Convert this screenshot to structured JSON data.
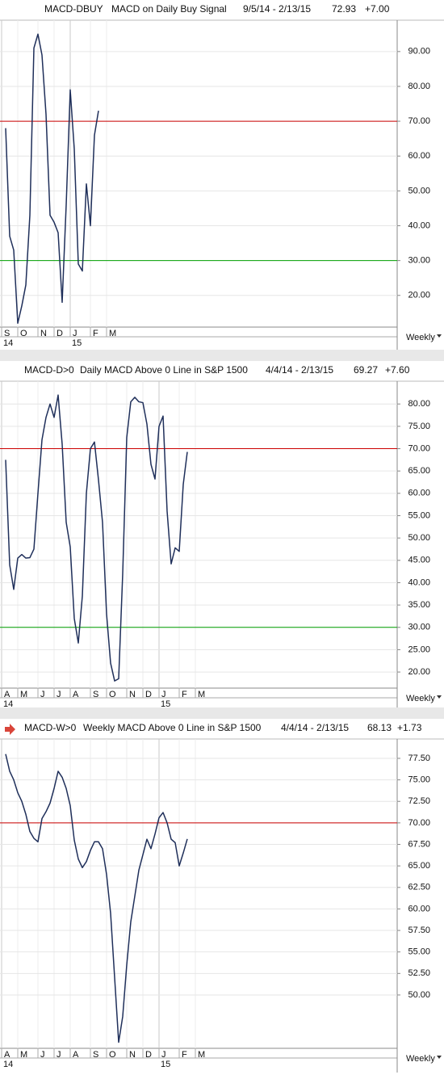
{
  "chart_data": [
    {
      "type": "line",
      "title": "MACD-DBUY",
      "subtitle": "MACD on Daily Buy Signal",
      "date_range": "9/5/14 - 2/13/15",
      "last": 72.93,
      "change": "+7.00",
      "period": "Weekly",
      "categories": [
        "S",
        null,
        null,
        null,
        "O",
        null,
        null,
        null,
        null,
        "N",
        null,
        null,
        null,
        "D",
        null,
        null,
        null,
        "J",
        null,
        null,
        null,
        null,
        "F",
        null,
        null,
        null,
        "M"
      ],
      "year_labels": [
        "14",
        null,
        null,
        null,
        null,
        null,
        null,
        null,
        null,
        null,
        null,
        null,
        null,
        null,
        null,
        null,
        null,
        "15",
        null,
        null,
        null,
        null,
        null,
        null,
        null,
        null,
        null
      ],
      "values": [
        68,
        37,
        33,
        12,
        17,
        23,
        43,
        91,
        95,
        89,
        72,
        43,
        41,
        38,
        18,
        46,
        79,
        62,
        29,
        27,
        52,
        40,
        66,
        73,
        null,
        null,
        null
      ],
      "color": "#1f2f5a",
      "ylim": [
        10.9,
        99
      ],
      "yticks": [
        {
          "value": 20,
          "label": "20.00"
        },
        {
          "value": 30,
          "label": "30.00"
        },
        {
          "value": 40,
          "label": "40.00"
        },
        {
          "value": 50,
          "label": "50.00"
        },
        {
          "value": 60,
          "label": "60.00"
        },
        {
          "value": 70,
          "label": "70.00"
        },
        {
          "value": 80,
          "label": "80.00"
        },
        {
          "value": 90,
          "label": "90.00"
        }
      ],
      "hlines": [
        {
          "value": 70,
          "color": "#cc0000"
        },
        {
          "value": 30,
          "color": "#00a000"
        }
      ],
      "grid": true,
      "arrow": false
    },
    {
      "type": "line",
      "title": "MACD-D>0",
      "subtitle": "Daily MACD Above 0 Line in S&P 1500",
      "date_range": "4/4/14 - 2/13/15",
      "last": 69.27,
      "change": "+7.60",
      "period": "Weekly",
      "categories": [
        "A",
        null,
        null,
        null,
        "M",
        null,
        null,
        null,
        null,
        "J",
        null,
        null,
        null,
        "J",
        null,
        null,
        null,
        "A",
        null,
        null,
        null,
        null,
        "S",
        null,
        null,
        null,
        "O",
        null,
        null,
        null,
        null,
        "N",
        null,
        null,
        null,
        "D",
        null,
        null,
        null,
        "J",
        null,
        null,
        null,
        null,
        "F",
        null,
        null,
        null,
        "M"
      ],
      "year_labels": [
        "14",
        null,
        null,
        null,
        null,
        null,
        null,
        null,
        null,
        null,
        null,
        null,
        null,
        null,
        null,
        null,
        null,
        null,
        null,
        null,
        null,
        null,
        null,
        null,
        null,
        null,
        null,
        null,
        null,
        null,
        null,
        null,
        null,
        null,
        null,
        null,
        null,
        null,
        null,
        "15",
        null,
        null,
        null,
        null,
        null,
        null,
        null,
        null,
        null
      ],
      "values": [
        67.5,
        44,
        38.5,
        45.5,
        46.3,
        45.5,
        45.6,
        47.5,
        60,
        72,
        77,
        80,
        77,
        82,
        71,
        53.5,
        48,
        32,
        26.5,
        37,
        60,
        70,
        71.5,
        63,
        53.5,
        33,
        22,
        18,
        18.5,
        42,
        72.5,
        80.5,
        81.5,
        80.5,
        80.3,
        75.5,
        66.5,
        63.2,
        75,
        77.3,
        56,
        44.2,
        47.8,
        47,
        62,
        69.27,
        null,
        null,
        null
      ],
      "color": "#1f2f5a",
      "ylim": [
        16.4,
        85.1
      ],
      "yticks": [
        {
          "value": 20,
          "label": "20.00"
        },
        {
          "value": 25,
          "label": "25.00"
        },
        {
          "value": 30,
          "label": "30.00"
        },
        {
          "value": 35,
          "label": "35.00"
        },
        {
          "value": 40,
          "label": "40.00"
        },
        {
          "value": 45,
          "label": "45.00"
        },
        {
          "value": 50,
          "label": "50.00"
        },
        {
          "value": 55,
          "label": "55.00"
        },
        {
          "value": 60,
          "label": "60.00"
        },
        {
          "value": 65,
          "label": "65.00"
        },
        {
          "value": 70,
          "label": "70.00"
        },
        {
          "value": 75,
          "label": "75.00"
        },
        {
          "value": 80,
          "label": "80.00"
        }
      ],
      "hlines": [
        {
          "value": 70,
          "color": "#cc0000"
        },
        {
          "value": 30,
          "color": "#00a000"
        }
      ],
      "grid": true,
      "arrow": false
    },
    {
      "type": "line",
      "title": "MACD-W>0",
      "subtitle": "Weekly MACD Above 0 Line in S&P 1500",
      "date_range": "4/4/14 - 2/13/15",
      "last": 68.13,
      "change": "+1.73",
      "period": "Weekly",
      "categories": [
        "A",
        null,
        null,
        null,
        "M",
        null,
        null,
        null,
        null,
        "J",
        null,
        null,
        null,
        "J",
        null,
        null,
        null,
        "A",
        null,
        null,
        null,
        null,
        "S",
        null,
        null,
        null,
        "O",
        null,
        null,
        null,
        null,
        "N",
        null,
        null,
        null,
        "D",
        null,
        null,
        null,
        "J",
        null,
        null,
        null,
        null,
        "F",
        null,
        null,
        null,
        "M"
      ],
      "year_labels": [
        "14",
        null,
        null,
        null,
        null,
        null,
        null,
        null,
        null,
        null,
        null,
        null,
        null,
        null,
        null,
        null,
        null,
        null,
        null,
        null,
        null,
        null,
        null,
        null,
        null,
        null,
        null,
        null,
        null,
        null,
        null,
        null,
        null,
        null,
        null,
        null,
        null,
        null,
        null,
        "15",
        null,
        null,
        null,
        null,
        null,
        null,
        null,
        null,
        null
      ],
      "values": [
        78,
        76,
        75,
        73.5,
        72.5,
        71,
        69,
        68.2,
        67.8,
        70.5,
        71.3,
        72.3,
        74,
        76,
        75.3,
        74,
        72,
        68,
        65.8,
        64.8,
        65.5,
        66.8,
        67.8,
        67.8,
        67,
        64,
        59.5,
        52,
        44.5,
        47.5,
        53.5,
        58.5,
        61.5,
        64.5,
        66.3,
        68.1,
        67,
        68.7,
        70.6,
        71.2,
        70,
        68.1,
        67.7,
        65,
        66.5,
        68.13,
        null,
        null,
        null
      ],
      "color": "#1f2f5a",
      "ylim": [
        43.8,
        79.75
      ],
      "yticks": [
        {
          "value": 50,
          "label": "50.00"
        },
        {
          "value": 52.5,
          "label": "52.50"
        },
        {
          "value": 55,
          "label": "55.00"
        },
        {
          "value": 57.5,
          "label": "57.50"
        },
        {
          "value": 60,
          "label": "60.00"
        },
        {
          "value": 62.5,
          "label": "62.50"
        },
        {
          "value": 65,
          "label": "65.00"
        },
        {
          "value": 67.5,
          "label": "67.50"
        },
        {
          "value": 70,
          "label": "70.00"
        },
        {
          "value": 72.5,
          "label": "72.50"
        },
        {
          "value": 75,
          "label": "75.00"
        },
        {
          "value": 77.5,
          "label": "77.50"
        }
      ],
      "hlines": [
        {
          "value": 70,
          "color": "#cc0000"
        }
      ],
      "grid": true,
      "arrow": true
    }
  ]
}
